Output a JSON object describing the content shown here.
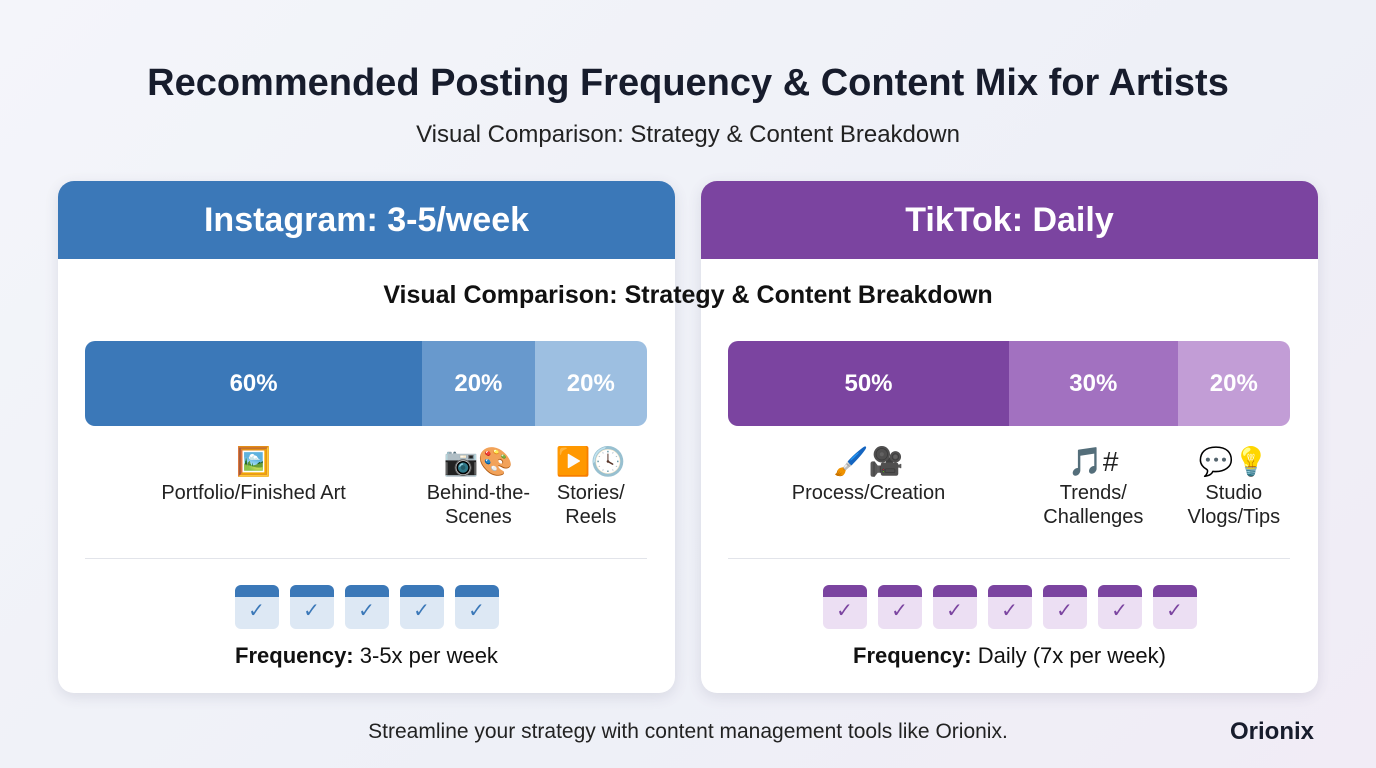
{
  "title": "Recommended Posting Frequency & Content Mix for Artists",
  "subtitle": "Visual Comparison: Strategy & Content Breakdown",
  "inner_subtitle": "Visual Comparison: Strategy & Content Breakdown",
  "footer": "Streamline your strategy with content management tools like Orionix.",
  "logo": "Orionix",
  "colors": {
    "instagram": [
      "#3b78b8",
      "#6899cd",
      "#9dbfe1"
    ],
    "tiktok": [
      "#7b44a0",
      "#a271c0",
      "#c29dd6"
    ]
  },
  "chart_data": [
    {
      "type": "bar",
      "title": "Instagram: 3-5/week",
      "categories": [
        "Portfolio/Finished Art",
        "Behind-the-Scenes",
        "Stories/Reels"
      ],
      "values": [
        60,
        20,
        20
      ],
      "value_labels": [
        "60%",
        "20%",
        "20%"
      ],
      "icons": [
        "🖼️",
        "📸🖼",
        "▶️🕓"
      ]
    },
    {
      "type": "bar",
      "title": "TikTok: Daily",
      "categories": [
        "Process/Creation",
        "Trends/Challenges",
        "Studio Vlogs/Tips"
      ],
      "values": [
        50,
        30,
        20
      ],
      "value_labels": [
        "50%",
        "30%",
        "20%"
      ],
      "icons": [
        "🖌️🎥",
        "🎵#",
        "💬💡"
      ]
    }
  ],
  "instagram": {
    "header": "Instagram: 3-5/week",
    "labels": [
      "Portfolio/Finished Art",
      "Behind-the-\nScenes",
      "Stories/\nReels"
    ],
    "icons": [
      "🖼️",
      "📷🎨",
      "▶️🕓"
    ],
    "calendar_count": 5,
    "freq_label": "Frequency:",
    "freq_value": " 3-5x per week"
  },
  "tiktok": {
    "header": "TikTok: Daily",
    "labels": [
      "Process/Creation",
      "Trends/\nChallenges",
      "Studio\nVlogs/Tips"
    ],
    "icons": [
      "🖌️🎥",
      "🎵#",
      "💬💡"
    ],
    "calendar_count": 7,
    "freq_label": "Frequency:",
    "freq_value": " Daily (7x per week)"
  }
}
